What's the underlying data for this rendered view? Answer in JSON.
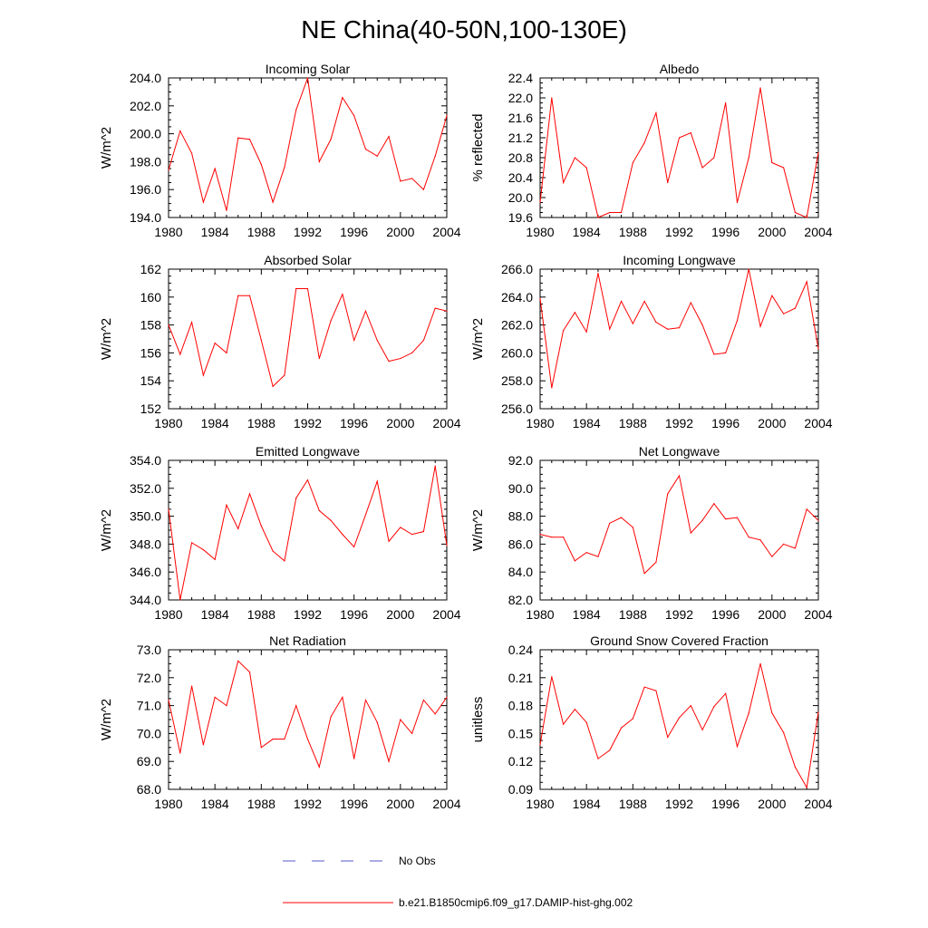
{
  "figure_title": "NE China(40-50N,100-130E)",
  "legend": [
    {
      "label": "No Obs",
      "color": "#5555cc",
      "style": "dashed"
    },
    {
      "label": "b.e21.B1850cmip6.f09_g17.DAMIP-hist-ghg.002",
      "color": "#ff0000",
      "style": "solid"
    }
  ],
  "chart_data": [
    {
      "type": "line",
      "title": "Incoming Solar",
      "ylabel": "W/m^2",
      "xlabel": "",
      "xlim": [
        1980,
        2004
      ],
      "ylim": [
        194.0,
        204.0
      ],
      "yticks": [
        194.0,
        196.0,
        198.0,
        200.0,
        202.0,
        204.0
      ],
      "ytick_labels": [
        "194.0",
        "196.0",
        "198.0",
        "200.0",
        "202.0",
        "204.0"
      ],
      "xticks": [
        1980,
        1984,
        1988,
        1992,
        1996,
        2000,
        2004
      ],
      "xtick_labels": [
        "1980",
        "1984",
        "1988",
        "1992",
        "1996",
        "2000",
        "2004"
      ],
      "x": [
        1980,
        1981,
        1982,
        1983,
        1984,
        1985,
        1986,
        1987,
        1988,
        1989,
        1990,
        1991,
        1992,
        1993,
        1994,
        1995,
        1996,
        1997,
        1998,
        1999,
        2000,
        2001,
        2002,
        2003,
        2004
      ],
      "values": [
        197.4,
        200.2,
        198.6,
        195.1,
        197.5,
        194.5,
        199.7,
        199.6,
        197.8,
        195.1,
        197.6,
        201.7,
        204.0,
        198.0,
        199.6,
        202.6,
        201.3,
        198.9,
        198.4,
        199.8,
        196.6,
        196.8,
        196.0,
        198.4,
        201.3
      ],
      "series": [
        {
          "name": "b.e21.B1850cmip6.f09_g17.DAMIP-hist-ghg.002"
        }
      ]
    },
    {
      "type": "line",
      "title": "Albedo",
      "ylabel": "% reflected",
      "xlabel": "",
      "xlim": [
        1980,
        2004
      ],
      "ylim": [
        19.6,
        22.4
      ],
      "yticks": [
        19.6,
        20.0,
        20.4,
        20.8,
        21.2,
        21.6,
        22.0,
        22.4
      ],
      "ytick_labels": [
        "19.6",
        "20.0",
        "20.4",
        "20.8",
        "21.2",
        "21.6",
        "22.0",
        "22.4"
      ],
      "xticks": [
        1980,
        1984,
        1988,
        1992,
        1996,
        2000,
        2004
      ],
      "xtick_labels": [
        "1980",
        "1984",
        "1988",
        "1992",
        "1996",
        "2000",
        "2004"
      ],
      "x": [
        1980,
        1981,
        1982,
        1983,
        1984,
        1985,
        1986,
        1987,
        1988,
        1989,
        1990,
        1991,
        1992,
        1993,
        1994,
        1995,
        1996,
        1997,
        1998,
        1999,
        2000,
        2001,
        2002,
        2003,
        2004
      ],
      "values": [
        19.9,
        22.0,
        20.3,
        20.8,
        20.6,
        19.6,
        19.7,
        19.7,
        20.7,
        21.1,
        21.7,
        20.3,
        21.2,
        21.3,
        20.6,
        20.8,
        21.9,
        19.9,
        20.8,
        22.2,
        20.7,
        20.6,
        19.7,
        19.6,
        20.9
      ],
      "series": [
        {
          "name": "b.e21.B1850cmip6.f09_g17.DAMIP-hist-ghg.002"
        }
      ]
    },
    {
      "type": "line",
      "title": "Absorbed Solar",
      "ylabel": "W/m^2",
      "xlabel": "",
      "xlim": [
        1980,
        2004
      ],
      "ylim": [
        152,
        162
      ],
      "yticks": [
        152,
        154,
        156,
        158,
        160,
        162
      ],
      "ytick_labels": [
        "152",
        "154",
        "156",
        "158",
        "160",
        "162"
      ],
      "xticks": [
        1980,
        1984,
        1988,
        1992,
        1996,
        2000,
        2004
      ],
      "xtick_labels": [
        "1980",
        "1984",
        "1988",
        "1992",
        "1996",
        "2000",
        "2004"
      ],
      "x": [
        1980,
        1981,
        1982,
        1983,
        1984,
        1985,
        1986,
        1987,
        1988,
        1989,
        1990,
        1991,
        1992,
        1993,
        1994,
        1995,
        1996,
        1997,
        1998,
        1999,
        2000,
        2001,
        2002,
        2003,
        2004
      ],
      "values": [
        158.0,
        155.9,
        158.2,
        154.4,
        156.7,
        156.0,
        160.1,
        160.1,
        156.9,
        153.6,
        154.4,
        160.6,
        160.6,
        155.6,
        158.3,
        160.2,
        156.9,
        159.0,
        156.9,
        155.4,
        155.6,
        156.0,
        156.9,
        159.2,
        159.0
      ],
      "series": [
        {
          "name": "b.e21.B1850cmip6.f09_g17.DAMIP-hist-ghg.002"
        }
      ]
    },
    {
      "type": "line",
      "title": "Incoming Longwave",
      "ylabel": "W/m^2",
      "xlabel": "",
      "xlim": [
        1980,
        2004
      ],
      "ylim": [
        256.0,
        266.0
      ],
      "yticks": [
        256.0,
        258.0,
        260.0,
        262.0,
        264.0,
        266.0
      ],
      "ytick_labels": [
        "256.0",
        "258.0",
        "260.0",
        "262.0",
        "264.0",
        "266.0"
      ],
      "xticks": [
        1980,
        1984,
        1988,
        1992,
        1996,
        2000,
        2004
      ],
      "xtick_labels": [
        "1980",
        "1984",
        "1988",
        "1992",
        "1996",
        "2000",
        "2004"
      ],
      "x": [
        1980,
        1981,
        1982,
        1983,
        1984,
        1985,
        1986,
        1987,
        1988,
        1989,
        1990,
        1991,
        1992,
        1993,
        1994,
        1995,
        1996,
        1997,
        1998,
        1999,
        2000,
        2001,
        2002,
        2003,
        2004
      ],
      "values": [
        263.9,
        257.5,
        261.6,
        262.9,
        261.5,
        265.7,
        261.7,
        263.7,
        262.1,
        263.7,
        262.2,
        261.7,
        261.8,
        263.6,
        262.0,
        259.9,
        260.0,
        262.3,
        266.0,
        261.9,
        264.1,
        262.8,
        263.2,
        265.1,
        260.3
      ],
      "series": [
        {
          "name": "b.e21.B1850cmip6.f09_g17.DAMIP-hist-ghg.002"
        }
      ]
    },
    {
      "type": "line",
      "title": "Emitted Longwave",
      "ylabel": "W/m^2",
      "xlabel": "",
      "xlim": [
        1980,
        2004
      ],
      "ylim": [
        344.0,
        354.0
      ],
      "yticks": [
        344.0,
        346.0,
        348.0,
        350.0,
        352.0,
        354.0
      ],
      "ytick_labels": [
        "344.0",
        "346.0",
        "348.0",
        "350.0",
        "352.0",
        "354.0"
      ],
      "xticks": [
        1980,
        1984,
        1988,
        1992,
        1996,
        2000,
        2004
      ],
      "xtick_labels": [
        "1980",
        "1984",
        "1988",
        "1992",
        "1996",
        "2000",
        "2004"
      ],
      "x": [
        1980,
        1981,
        1982,
        1983,
        1984,
        1985,
        1986,
        1987,
        1988,
        1989,
        1990,
        1991,
        1992,
        1993,
        1994,
        1995,
        1996,
        1997,
        1998,
        1999,
        2000,
        2001,
        2002,
        2003,
        2004
      ],
      "values": [
        350.5,
        344.0,
        348.1,
        347.6,
        346.9,
        350.8,
        349.1,
        351.6,
        349.3,
        347.5,
        346.8,
        351.3,
        352.6,
        350.4,
        349.7,
        348.7,
        347.8,
        350.1,
        352.5,
        348.2,
        349.2,
        348.7,
        348.9,
        353.6,
        347.9
      ],
      "series": [
        {
          "name": "b.e21.B1850cmip6.f09_g17.DAMIP-hist-ghg.002"
        }
      ]
    },
    {
      "type": "line",
      "title": "Net Longwave",
      "ylabel": "W/m^2",
      "xlabel": "",
      "xlim": [
        1980,
        2004
      ],
      "ylim": [
        82.0,
        92.0
      ],
      "yticks": [
        82.0,
        84.0,
        86.0,
        88.0,
        90.0,
        92.0
      ],
      "ytick_labels": [
        "82.0",
        "84.0",
        "86.0",
        "88.0",
        "90.0",
        "92.0"
      ],
      "xticks": [
        1980,
        1984,
        1988,
        1992,
        1996,
        2000,
        2004
      ],
      "xtick_labels": [
        "1980",
        "1984",
        "1988",
        "1992",
        "1996",
        "2000",
        "2004"
      ],
      "x": [
        1980,
        1981,
        1982,
        1983,
        1984,
        1985,
        1986,
        1987,
        1988,
        1989,
        1990,
        1991,
        1992,
        1993,
        1994,
        1995,
        1996,
        1997,
        1998,
        1999,
        2000,
        2001,
        2002,
        2003,
        2004
      ],
      "values": [
        86.7,
        86.5,
        86.5,
        84.8,
        85.4,
        85.1,
        87.5,
        87.9,
        87.2,
        83.9,
        84.7,
        89.6,
        90.9,
        86.8,
        87.7,
        88.9,
        87.8,
        87.9,
        86.5,
        86.3,
        85.1,
        86.0,
        85.7,
        88.5,
        87.7
      ],
      "series": [
        {
          "name": "b.e21.B1850cmip6.f09_g17.DAMIP-hist-ghg.002"
        }
      ]
    },
    {
      "type": "line",
      "title": "Net Radiation",
      "ylabel": "W/m^2",
      "xlabel": "",
      "xlim": [
        1980,
        2004
      ],
      "ylim": [
        68.0,
        73.0
      ],
      "yticks": [
        68.0,
        69.0,
        70.0,
        71.0,
        72.0,
        73.0
      ],
      "ytick_labels": [
        "68.0",
        "69.0",
        "70.0",
        "71.0",
        "72.0",
        "73.0"
      ],
      "xticks": [
        1980,
        1984,
        1988,
        1992,
        1996,
        2000,
        2004
      ],
      "xtick_labels": [
        "1980",
        "1984",
        "1988",
        "1992",
        "1996",
        "2000",
        "2004"
      ],
      "x": [
        1980,
        1981,
        1982,
        1983,
        1984,
        1985,
        1986,
        1987,
        1988,
        1989,
        1990,
        1991,
        1992,
        1993,
        1994,
        1995,
        1996,
        1997,
        1998,
        1999,
        2000,
        2001,
        2002,
        2003,
        2004
      ],
      "values": [
        71.2,
        69.3,
        71.7,
        69.6,
        71.3,
        71.0,
        72.6,
        72.2,
        69.5,
        69.8,
        69.8,
        71.0,
        69.8,
        68.8,
        70.6,
        71.3,
        69.1,
        71.2,
        70.4,
        69.0,
        70.5,
        70.0,
        71.2,
        70.7,
        71.3
      ],
      "series": [
        {
          "name": "b.e21.B1850cmip6.f09_g17.DAMIP-hist-ghg.002"
        }
      ]
    },
    {
      "type": "line",
      "title": "Ground Snow Covered Fraction",
      "ylabel": "unitless",
      "xlabel": "",
      "xlim": [
        1980,
        2004
      ],
      "ylim": [
        0.09,
        0.24
      ],
      "yticks": [
        0.09,
        0.12,
        0.15,
        0.18,
        0.21,
        0.24
      ],
      "ytick_labels": [
        "0.09",
        "0.12",
        "0.15",
        "0.18",
        "0.21",
        "0.24"
      ],
      "xticks": [
        1980,
        1984,
        1988,
        1992,
        1996,
        2000,
        2004
      ],
      "xtick_labels": [
        "1980",
        "1984",
        "1988",
        "1992",
        "1996",
        "2000",
        "2004"
      ],
      "x": [
        1980,
        1981,
        1982,
        1983,
        1984,
        1985,
        1986,
        1987,
        1988,
        1989,
        1990,
        1991,
        1992,
        1993,
        1994,
        1995,
        1996,
        1997,
        1998,
        1999,
        2000,
        2001,
        2002,
        2003,
        2004
      ],
      "values": [
        0.138,
        0.211,
        0.16,
        0.176,
        0.162,
        0.123,
        0.132,
        0.156,
        0.166,
        0.2,
        0.196,
        0.146,
        0.167,
        0.18,
        0.154,
        0.179,
        0.193,
        0.136,
        0.172,
        0.225,
        0.172,
        0.151,
        0.114,
        0.092,
        0.173
      ],
      "series": [
        {
          "name": "b.e21.B1850cmip6.f09_g17.DAMIP-hist-ghg.002"
        }
      ]
    }
  ]
}
